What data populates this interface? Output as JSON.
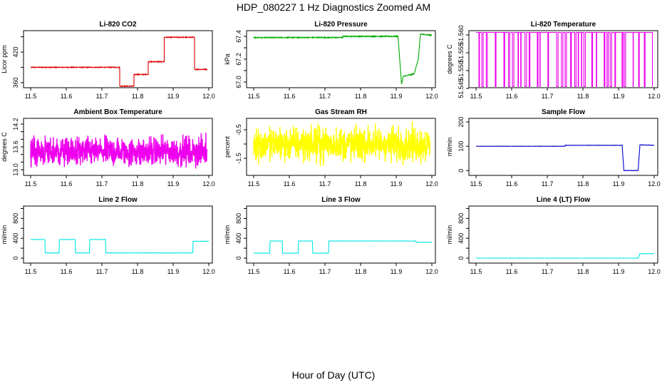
{
  "page": {
    "title": "HDP_080227  1 Hz Diagnostics Zoomed AM",
    "xcaption": "Hour of Day (UTC)"
  },
  "chart_data": [
    {
      "id": "co2",
      "type": "line",
      "title": "Li-820 CO2",
      "ylabel": "Licor ppm",
      "color": "#dd0000",
      "xlim": [
        11.48,
        12.01
      ],
      "ylim": [
        350,
        462
      ],
      "xticks": [
        11.5,
        11.6,
        11.7,
        11.8,
        11.9,
        12.0
      ],
      "xticklabels": [
        "11.5",
        "11.6",
        "11.7",
        "11.8",
        "11.9",
        "12.0"
      ],
      "yticks": [
        360,
        390,
        420,
        450
      ],
      "yticklabels": [
        "360",
        "",
        "420",
        ""
      ],
      "noise": 0.8,
      "series": [
        {
          "values": [
            [
              11.5,
              390
            ],
            [
              11.75,
              390
            ],
            [
              11.75,
              353
            ],
            [
              11.79,
              353
            ],
            [
              11.79,
              376
            ],
            [
              11.83,
              376
            ],
            [
              11.83,
              401
            ],
            [
              11.875,
              401
            ],
            [
              11.875,
              449
            ],
            [
              11.96,
              449
            ],
            [
              11.96,
              386
            ],
            [
              11.995,
              386
            ]
          ]
        }
      ]
    },
    {
      "id": "pressure",
      "type": "line",
      "title": "Li-820 Pressure",
      "ylabel": "kPa",
      "color": "#00aa00",
      "xlim": [
        11.48,
        12.01
      ],
      "ylim": [
        66.95,
        67.45
      ],
      "xticks": [
        11.5,
        11.6,
        11.7,
        11.8,
        11.9,
        12.0
      ],
      "xticklabels": [
        "11.5",
        "11.6",
        "11.7",
        "11.8",
        "11.9",
        "12.0"
      ],
      "yticks": [
        67.0,
        67.1,
        67.2,
        67.3,
        67.4
      ],
      "yticklabels": [
        "67.0",
        "",
        "67.2",
        "",
        "67.4"
      ],
      "noise": 0.004,
      "series": [
        {
          "values": [
            [
              11.5,
              67.39
            ],
            [
              11.75,
              67.39
            ],
            [
              11.75,
              67.4
            ],
            [
              11.905,
              67.4
            ],
            [
              11.915,
              66.98
            ],
            [
              11.92,
              67.05
            ],
            [
              11.95,
              67.07
            ],
            [
              11.962,
              67.2
            ],
            [
              11.968,
              67.42
            ],
            [
              12.0,
              67.41
            ]
          ]
        }
      ]
    },
    {
      "id": "temperature",
      "type": "line",
      "title": "Li-820 Temperature",
      "ylabel": "degrees C",
      "color": "#ee00ee",
      "xlim": [
        11.48,
        12.01
      ],
      "ylim": [
        51.5452,
        51.5612
      ],
      "xticks": [
        11.5,
        11.6,
        11.7,
        11.8,
        11.9,
        12.0
      ],
      "xticklabels": [
        "11.5",
        "11.6",
        "11.7",
        "11.8",
        "11.9",
        "12.0"
      ],
      "yticks": [
        51.545,
        51.55,
        51.555,
        51.56
      ],
      "yticklabels": [
        "51.545",
        "51.550",
        "51.555",
        "51.560"
      ],
      "digital": {
        "hi": 51.5607,
        "lo": 51.5455
      },
      "series": [
        {
          "values": []
        }
      ]
    },
    {
      "id": "ambient",
      "type": "line",
      "title": "Ambient Box Temperature",
      "ylabel": "degrees C",
      "color": "#ee00ee",
      "xlim": [
        11.48,
        12.01
      ],
      "ylim": [
        12.85,
        14.35
      ],
      "xticks": [
        11.5,
        11.6,
        11.7,
        11.8,
        11.9,
        12.0
      ],
      "xticklabels": [
        "11.5",
        "11.6",
        "11.7",
        "11.8",
        "11.9",
        "12.0"
      ],
      "yticks": [
        13.0,
        13.2,
        13.4,
        13.6,
        13.8,
        14.0,
        14.2
      ],
      "yticklabels": [
        "13.0",
        "",
        "",
        "13.6",
        "",
        "",
        "14.2"
      ],
      "noise_band": {
        "center": 13.47,
        "amp": 0.35
      },
      "series": [
        {
          "values": []
        }
      ]
    },
    {
      "id": "rh",
      "type": "line",
      "title": "Gas Stream RH",
      "ylabel": "percent",
      "color": "#ffff00",
      "xlim": [
        11.48,
        12.01
      ],
      "ylim": [
        -2.1,
        -0.1
      ],
      "xticks": [
        11.5,
        11.6,
        11.7,
        11.8,
        11.9,
        12.0
      ],
      "xticklabels": [
        "11.5",
        "11.6",
        "11.7",
        "11.8",
        "11.9",
        "12.0"
      ],
      "yticks": [
        -1.5,
        -1.0,
        -0.5
      ],
      "yticklabels": [
        "-1.5",
        "",
        "-0.5"
      ],
      "noise_band": {
        "center": -1.0,
        "amp": 0.55
      },
      "series": [
        {
          "values": []
        }
      ]
    },
    {
      "id": "sample",
      "type": "line",
      "title": "Sample Flow",
      "ylabel": "ml/min",
      "color": "#0000cc",
      "xlim": [
        11.48,
        12.01
      ],
      "ylim": [
        -20,
        215
      ],
      "xticks": [
        11.5,
        11.6,
        11.7,
        11.8,
        11.9,
        12.0
      ],
      "xticklabels": [
        "11.5",
        "11.6",
        "11.7",
        "11.8",
        "11.9",
        "12.0"
      ],
      "yticks": [
        0,
        100,
        200
      ],
      "yticklabels": [
        "0",
        "100",
        "200"
      ],
      "noise": 0.6,
      "series": [
        {
          "values": [
            [
              11.5,
              100
            ],
            [
              11.75,
              100
            ],
            [
              11.75,
              104
            ],
            [
              11.91,
              104
            ],
            [
              11.915,
              0
            ],
            [
              11.955,
              0
            ],
            [
              11.96,
              106
            ],
            [
              12.0,
              104
            ]
          ]
        }
      ]
    },
    {
      "id": "line2",
      "type": "line",
      "title": "Line 2 Flow",
      "ylabel": "ml/min",
      "color": "#00e5e5",
      "xlim": [
        11.48,
        12.01
      ],
      "ylim": [
        -100,
        1050
      ],
      "xticks": [
        11.5,
        11.6,
        11.7,
        11.8,
        11.9,
        12.0
      ],
      "xticklabels": [
        "11.5",
        "11.6",
        "11.7",
        "11.8",
        "11.9",
        "12.0"
      ],
      "yticks": [
        0,
        200,
        400,
        600,
        800,
        1000
      ],
      "yticklabels": [
        "0",
        "",
        "400",
        "",
        "800",
        ""
      ],
      "noise": 2,
      "series": [
        {
          "values": [
            [
              11.5,
              375
            ],
            [
              11.54,
              375
            ],
            [
              11.541,
              105
            ],
            [
              11.58,
              105
            ],
            [
              11.581,
              375
            ],
            [
              11.625,
              375
            ],
            [
              11.626,
              105
            ],
            [
              11.665,
              105
            ],
            [
              11.666,
              375
            ],
            [
              11.71,
              375
            ],
            [
              11.711,
              105
            ],
            [
              11.955,
              105
            ],
            [
              11.956,
              340
            ],
            [
              12.0,
              340
            ]
          ]
        }
      ]
    },
    {
      "id": "line3",
      "type": "line",
      "title": "Line 3 Flow",
      "ylabel": "ml/min",
      "color": "#00e5e5",
      "xlim": [
        11.48,
        12.01
      ],
      "ylim": [
        -100,
        1050
      ],
      "xticks": [
        11.5,
        11.6,
        11.7,
        11.8,
        11.9,
        12.0
      ],
      "xticklabels": [
        "11.5",
        "11.6",
        "11.7",
        "11.8",
        "11.9",
        "12.0"
      ],
      "yticks": [
        0,
        200,
        400,
        600,
        800,
        1000
      ],
      "yticklabels": [
        "0",
        "",
        "400",
        "",
        "800",
        ""
      ],
      "noise": 2,
      "series": [
        {
          "values": [
            [
              11.5,
              100
            ],
            [
              11.545,
              100
            ],
            [
              11.546,
              345
            ],
            [
              11.58,
              345
            ],
            [
              11.581,
              100
            ],
            [
              11.625,
              100
            ],
            [
              11.626,
              345
            ],
            [
              11.665,
              345
            ],
            [
              11.666,
              100
            ],
            [
              11.71,
              100
            ],
            [
              11.711,
              345
            ],
            [
              11.955,
              345
            ],
            [
              11.956,
              320
            ],
            [
              12.0,
              320
            ]
          ]
        }
      ]
    },
    {
      "id": "line4",
      "type": "line",
      "title": "Line 4 (LT) Flow",
      "ylabel": "ml/min",
      "color": "#00e5e5",
      "xlim": [
        11.48,
        12.01
      ],
      "ylim": [
        -100,
        1050
      ],
      "xticks": [
        11.5,
        11.6,
        11.7,
        11.8,
        11.9,
        12.0
      ],
      "xticklabels": [
        "11.5",
        "11.6",
        "11.7",
        "11.8",
        "11.9",
        "12.0"
      ],
      "yticks": [
        0,
        200,
        400,
        600,
        800,
        1000
      ],
      "yticklabels": [
        "0",
        "",
        "400",
        "",
        "800",
        ""
      ],
      "noise": 1,
      "series": [
        {
          "values": [
            [
              11.5,
              0
            ],
            [
              11.955,
              0
            ],
            [
              11.96,
              90
            ],
            [
              12.0,
              90
            ]
          ]
        }
      ]
    }
  ]
}
